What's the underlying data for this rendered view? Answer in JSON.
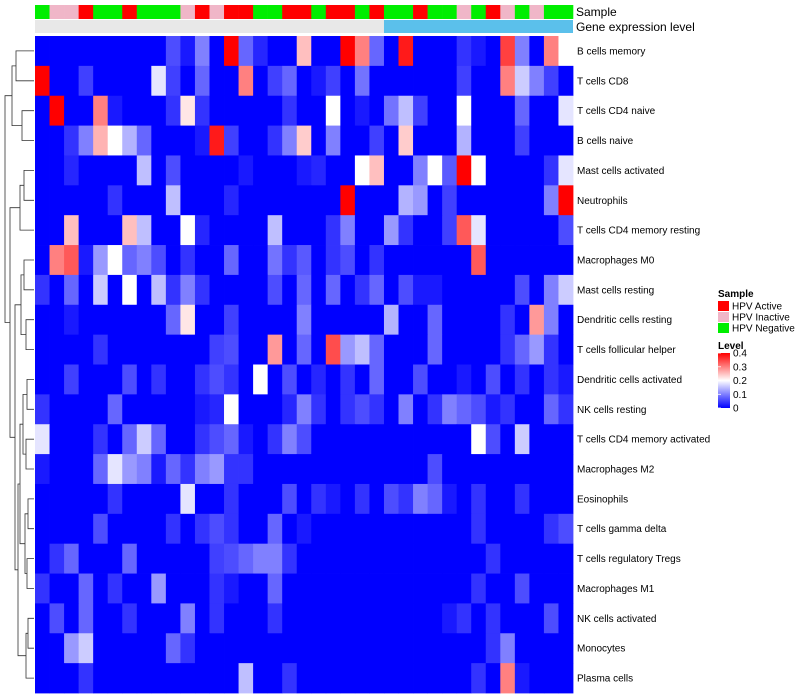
{
  "chart_data": {
    "type": "heatmap",
    "annotation_rows": [
      "Sample",
      "Gene expression level"
    ],
    "rows": [
      "B cells memory",
      "T cells CD8",
      "T cells CD4 naive",
      "B cells naive",
      "Mast cells activated",
      "Neutrophils",
      "T cells CD4 memory resting",
      "Macrophages M0",
      "Mast cells resting",
      "Dendritic cells resting",
      "T cells follicular helper",
      "Dendritic cells activated",
      "NK cells resting",
      "T cells CD4 memory activated",
      "Macrophages M2",
      "Eosinophils",
      "T cells gamma delta",
      "T cells regulatory  Tregs",
      "Macrophages M1",
      "NK cells activated",
      "Monocytes",
      "Plasma cells"
    ],
    "sample_annotation": [
      "Negative",
      "Inactive",
      "Inactive",
      "Active",
      "Negative",
      "Negative",
      "Active",
      "Negative",
      "Negative",
      "Negative",
      "Inactive",
      "Active",
      "Inactive",
      "Active",
      "Active",
      "Negative",
      "Negative",
      "Active",
      "Active",
      "Negative",
      "Active",
      "Active",
      "Negative",
      "Active",
      "Negative",
      "Negative",
      "Active",
      "Negative",
      "Negative",
      "Inactive",
      "Negative",
      "Active",
      "Inactive",
      "Negative",
      "Inactive",
      "Negative",
      "Negative"
    ],
    "gene_expression_level_split": 24,
    "color_scale": {
      "name": "Level",
      "ticks": [
        "0.4",
        "0.3",
        "0.2",
        "0.1",
        "0"
      ],
      "min": 0,
      "max": 0.4,
      "colors": [
        "#0000ff",
        "#ffffff",
        "#ff0000"
      ]
    },
    "legend": {
      "title": "Sample",
      "entries": [
        {
          "label": "HPV Active",
          "color": "#ff0000"
        },
        {
          "label": "HPV Inactive",
          "color": "#f0b6c8"
        },
        {
          "label": "HPV Negative",
          "color": "#00ee00"
        }
      ]
    },
    "gene_expression_colors": [
      "#e8e8e8",
      "#5bc0eb"
    ],
    "values": [
      [
        0.0,
        0.0,
        0.0,
        0.0,
        0.0,
        0.0,
        0.0,
        0.0,
        0.0,
        0.06,
        0.02,
        0.1,
        0.0,
        0.4,
        0.08,
        0.03,
        0.0,
        0.0,
        0.25,
        0.0,
        0.0,
        0.4,
        0.3,
        0.08,
        0.0,
        0.38,
        0.0,
        0.0,
        0.0,
        0.04,
        0.02,
        0.0,
        0.35,
        0.1,
        0.0,
        0.3,
        0.2
      ],
      [
        0.4,
        0.0,
        0.0,
        0.05,
        0.0,
        0.0,
        0.0,
        0.0,
        0.18,
        0.05,
        0.0,
        0.08,
        0.0,
        0.0,
        0.3,
        0.0,
        0.05,
        0.08,
        0.0,
        0.02,
        0.05,
        0.0,
        0.09,
        0.0,
        0.0,
        0.0,
        0.0,
        0.0,
        0.0,
        0.05,
        0.0,
        0.0,
        0.3,
        0.16,
        0.1,
        0.05,
        0.0
      ],
      [
        0.0,
        0.4,
        0.0,
        0.0,
        0.3,
        0.02,
        0.0,
        0.0,
        0.0,
        0.04,
        0.22,
        0.04,
        0.0,
        0.0,
        0.0,
        0.0,
        0.0,
        0.04,
        0.0,
        0.0,
        0.2,
        0.0,
        0.02,
        0.0,
        0.09,
        0.15,
        0.05,
        0.0,
        0.0,
        0.2,
        0.0,
        0.0,
        0.0,
        0.08,
        0.0,
        0.0,
        0.18
      ],
      [
        0.0,
        0.0,
        0.04,
        0.1,
        0.26,
        0.2,
        0.14,
        0.08,
        0.0,
        0.0,
        0.0,
        0.02,
        0.38,
        0.05,
        0.0,
        0.0,
        0.04,
        0.1,
        0.24,
        0.0,
        0.1,
        0.0,
        0.0,
        0.05,
        0.0,
        0.24,
        0.0,
        0.0,
        0.0,
        0.14,
        0.0,
        0.0,
        0.0,
        0.05,
        0.0,
        0.0,
        0.0
      ],
      [
        0.0,
        0.0,
        0.03,
        0.0,
        0.0,
        0.0,
        0.0,
        0.15,
        0.0,
        0.06,
        0.0,
        0.0,
        0.0,
        0.0,
        0.02,
        0.0,
        0.0,
        0.0,
        0.02,
        0.03,
        0.0,
        0.0,
        0.2,
        0.25,
        0.0,
        0.0,
        0.1,
        0.2,
        0.07,
        0.4,
        0.2,
        0.0,
        0.0,
        0.0,
        0.0,
        0.04,
        0.18
      ],
      [
        0.0,
        0.0,
        0.0,
        0.0,
        0.0,
        0.04,
        0.0,
        0.0,
        0.0,
        0.15,
        0.0,
        0.0,
        0.0,
        0.03,
        0.0,
        0.0,
        0.0,
        0.0,
        0.0,
        0.0,
        0.0,
        0.4,
        0.0,
        0.0,
        0.0,
        0.14,
        0.12,
        0.0,
        0.05,
        0.0,
        0.0,
        0.0,
        0.0,
        0.0,
        0.0,
        0.1,
        0.4
      ],
      [
        0.0,
        0.0,
        0.25,
        0.0,
        0.0,
        0.0,
        0.25,
        0.15,
        0.0,
        0.0,
        0.2,
        0.03,
        0.0,
        0.0,
        0.0,
        0.0,
        0.15,
        0.0,
        0.0,
        0.0,
        0.04,
        0.1,
        0.0,
        0.0,
        0.12,
        0.04,
        0.0,
        0.0,
        0.05,
        0.33,
        0.18,
        0.0,
        0.0,
        0.0,
        0.0,
        0.0,
        0.06
      ],
      [
        0.0,
        0.3,
        0.33,
        0.02,
        0.12,
        0.2,
        0.08,
        0.1,
        0.06,
        0.0,
        0.04,
        0.0,
        0.0,
        0.08,
        0.0,
        0.0,
        0.09,
        0.04,
        0.07,
        0.0,
        0.04,
        0.06,
        0.0,
        0.04,
        0.0,
        0.0,
        0.0,
        0.0,
        0.0,
        0.0,
        0.33,
        0.0,
        0.0,
        0.0,
        0.0,
        0.0,
        0.0
      ],
      [
        0.04,
        0.0,
        0.08,
        0.0,
        0.16,
        0.0,
        0.2,
        0.0,
        0.15,
        0.04,
        0.1,
        0.04,
        0.0,
        0.0,
        0.0,
        0.0,
        0.06,
        0.0,
        0.08,
        0.0,
        0.08,
        0.0,
        0.04,
        0.08,
        0.0,
        0.06,
        0.02,
        0.02,
        0.0,
        0.0,
        0.0,
        0.0,
        0.0,
        0.06,
        0.0,
        0.1,
        0.16
      ],
      [
        0.0,
        0.0,
        0.02,
        0.0,
        0.0,
        0.0,
        0.0,
        0.0,
        0.0,
        0.08,
        0.22,
        0.0,
        0.0,
        0.05,
        0.0,
        0.0,
        0.0,
        0.0,
        0.1,
        0.0,
        0.0,
        0.0,
        0.0,
        0.0,
        0.14,
        0.0,
        0.0,
        0.08,
        0.0,
        0.0,
        0.0,
        0.0,
        0.04,
        0.0,
        0.28,
        0.1,
        0.0
      ],
      [
        0.0,
        0.0,
        0.0,
        0.0,
        0.04,
        0.0,
        0.0,
        0.0,
        0.0,
        0.0,
        0.0,
        0.0,
        0.05,
        0.06,
        0.0,
        0.0,
        0.28,
        0.0,
        0.08,
        0.0,
        0.34,
        0.12,
        0.15,
        0.08,
        0.0,
        0.0,
        0.0,
        0.08,
        0.0,
        0.0,
        0.0,
        0.0,
        0.04,
        0.08,
        0.12,
        0.04,
        0.0
      ],
      [
        0.0,
        0.0,
        0.05,
        0.0,
        0.0,
        0.0,
        0.06,
        0.0,
        0.04,
        0.0,
        0.0,
        0.04,
        0.06,
        0.04,
        0.0,
        0.2,
        0.0,
        0.06,
        0.0,
        0.03,
        0.0,
        0.04,
        0.0,
        0.08,
        0.0,
        0.0,
        0.06,
        0.0,
        0.0,
        0.02,
        0.0,
        0.06,
        0.0,
        0.04,
        0.0,
        0.04,
        0.02
      ],
      [
        0.04,
        0.0,
        0.0,
        0.0,
        0.0,
        0.08,
        0.0,
        0.0,
        0.0,
        0.0,
        0.0,
        0.02,
        0.03,
        0.2,
        0.0,
        0.0,
        0.0,
        0.03,
        0.1,
        0.04,
        0.0,
        0.04,
        0.06,
        0.04,
        0.0,
        0.1,
        0.0,
        0.04,
        0.1,
        0.08,
        0.06,
        0.02,
        0.04,
        0.0,
        0.0,
        0.08,
        0.04
      ],
      [
        0.18,
        0.0,
        0.0,
        0.0,
        0.04,
        0.0,
        0.08,
        0.16,
        0.08,
        0.0,
        0.0,
        0.04,
        0.06,
        0.08,
        0.02,
        0.0,
        0.04,
        0.1,
        0.06,
        0.0,
        0.0,
        0.0,
        0.0,
        0.0,
        0.0,
        0.0,
        0.0,
        0.0,
        0.0,
        0.0,
        0.2,
        0.06,
        0.0,
        0.16,
        0.0,
        0.0,
        0.0
      ],
      [
        0.02,
        0.0,
        0.0,
        0.0,
        0.08,
        0.18,
        0.12,
        0.1,
        0.02,
        0.08,
        0.04,
        0.1,
        0.12,
        0.04,
        0.04,
        0.0,
        0.0,
        0.0,
        0.0,
        0.0,
        0.0,
        0.0,
        0.0,
        0.0,
        0.0,
        0.0,
        0.0,
        0.06,
        0.0,
        0.0,
        0.0,
        0.0,
        0.0,
        0.0,
        0.0,
        0.0,
        0.0
      ],
      [
        0.0,
        0.0,
        0.0,
        0.0,
        0.0,
        0.04,
        0.0,
        0.0,
        0.0,
        0.0,
        0.18,
        0.0,
        0.0,
        0.04,
        0.0,
        0.0,
        0.0,
        0.06,
        0.0,
        0.04,
        0.02,
        0.0,
        0.04,
        0.0,
        0.06,
        0.04,
        0.1,
        0.08,
        0.02,
        0.0,
        0.04,
        0.0,
        0.0,
        0.04,
        0.0,
        0.0,
        0.0
      ],
      [
        0.0,
        0.0,
        0.0,
        0.0,
        0.06,
        0.0,
        0.0,
        0.0,
        0.0,
        0.04,
        0.0,
        0.04,
        0.06,
        0.04,
        0.0,
        0.0,
        0.08,
        0.0,
        0.02,
        0.0,
        0.0,
        0.0,
        0.0,
        0.0,
        0.0,
        0.0,
        0.0,
        0.0,
        0.0,
        0.0,
        0.04,
        0.0,
        0.0,
        0.0,
        0.0,
        0.04,
        0.06
      ],
      [
        0.0,
        0.04,
        0.08,
        0.0,
        0.0,
        0.0,
        0.08,
        0.0,
        0.0,
        0.0,
        0.0,
        0.0,
        0.05,
        0.06,
        0.08,
        0.1,
        0.1,
        0.04,
        0.0,
        0.0,
        0.0,
        0.0,
        0.0,
        0.0,
        0.0,
        0.0,
        0.0,
        0.0,
        0.0,
        0.0,
        0.0,
        0.04,
        0.0,
        0.0,
        0.0,
        0.0,
        0.0
      ],
      [
        0.04,
        0.0,
        0.0,
        0.08,
        0.0,
        0.04,
        0.0,
        0.0,
        0.12,
        0.0,
        0.0,
        0.0,
        0.04,
        0.02,
        0.0,
        0.0,
        0.08,
        0.0,
        0.0,
        0.0,
        0.0,
        0.0,
        0.0,
        0.0,
        0.0,
        0.0,
        0.0,
        0.0,
        0.0,
        0.0,
        0.04,
        0.0,
        0.0,
        0.06,
        0.0,
        0.0,
        0.0
      ],
      [
        0.0,
        0.06,
        0.0,
        0.08,
        0.0,
        0.0,
        0.04,
        0.0,
        0.0,
        0.0,
        0.1,
        0.0,
        0.04,
        0.0,
        0.0,
        0.0,
        0.04,
        0.0,
        0.0,
        0.0,
        0.0,
        0.0,
        0.0,
        0.0,
        0.0,
        0.0,
        0.0,
        0.0,
        0.02,
        0.04,
        0.0,
        0.04,
        0.0,
        0.0,
        0.0,
        0.06,
        0.0
      ],
      [
        0.0,
        0.0,
        0.12,
        0.16,
        0.0,
        0.0,
        0.0,
        0.0,
        0.0,
        0.08,
        0.04,
        0.0,
        0.0,
        0.0,
        0.0,
        0.0,
        0.0,
        0.0,
        0.0,
        0.0,
        0.0,
        0.0,
        0.0,
        0.0,
        0.0,
        0.0,
        0.0,
        0.0,
        0.0,
        0.0,
        0.0,
        0.04,
        0.1,
        0.0,
        0.0,
        0.0,
        0.0
      ],
      [
        0.0,
        0.0,
        0.0,
        0.04,
        0.0,
        0.0,
        0.0,
        0.0,
        0.0,
        0.0,
        0.0,
        0.0,
        0.0,
        0.0,
        0.15,
        0.0,
        0.0,
        0.04,
        0.0,
        0.0,
        0.0,
        0.0,
        0.0,
        0.0,
        0.0,
        0.0,
        0.0,
        0.0,
        0.0,
        0.0,
        0.04,
        0.0,
        0.3,
        0.02,
        0.0,
        0.0,
        0.0
      ]
    ]
  }
}
